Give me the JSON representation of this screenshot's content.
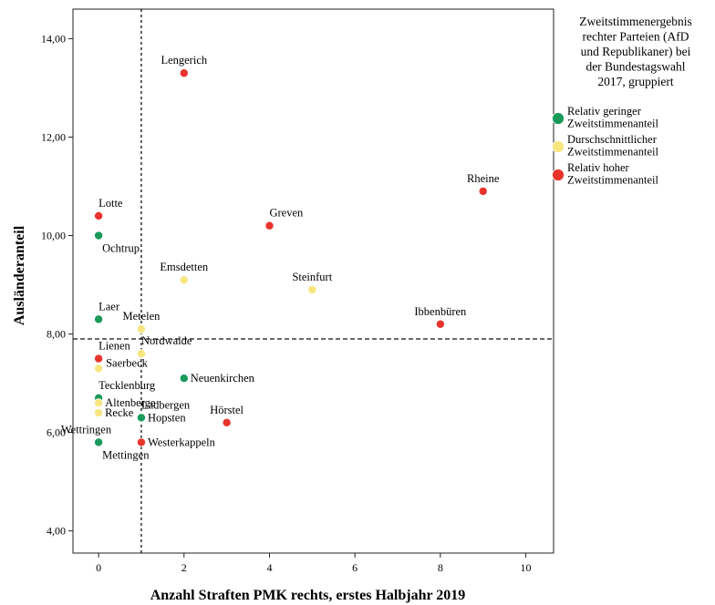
{
  "chart_data": {
    "type": "scatter",
    "xlabel": "Anzahl Straften PMK rechts, erstes Halbjahr 2019",
    "ylabel": "Ausländeranteil",
    "xlim": [
      -0.6,
      10.65
    ],
    "ylim": [
      3.55,
      14.6
    ],
    "xticks": [
      0,
      2,
      4,
      6,
      8,
      10
    ],
    "yticks": [
      4.0,
      6.0,
      8.0,
      10.0,
      12.0,
      14.0
    ],
    "xtick_labels": [
      "0",
      "2",
      "4",
      "6",
      "8",
      "10"
    ],
    "ytick_labels": [
      "4,00",
      "6,00",
      "8,00",
      "10,00",
      "12,00",
      "14,00"
    ],
    "reference_lines": {
      "vertical_x": 1.0,
      "horizontal_y": 7.9
    },
    "grid": false,
    "legend": {
      "placement": "right",
      "title": "Zweitstimmenergebnis rechter Parteien (AfD und Republikaner) bei der Bundestagswahl 2017, gruppiert",
      "title_lines": [
        "Zweitstimmenergebnis",
        "rechter Parteien (AfD",
        "und Republikaner) bei",
        "der Bundestagswahl",
        "2017, gruppiert"
      ],
      "entries": [
        {
          "key": "low",
          "label": "Relativ geringer Zweitstimmenanteil",
          "lines": [
            "Relativ geringer",
            "Zweitstimmenanteil"
          ]
        },
        {
          "key": "mid",
          "label": "Durschschnittlicher Zweitstimmenanteil",
          "lines": [
            "Durschschnittlicher",
            "Zweitstimmenanteil"
          ]
        },
        {
          "key": "high",
          "label": "Relativ hoher Zweitstimmenanteil",
          "lines": [
            "Relativ hoher",
            "Zweitstimmenanteil"
          ]
        }
      ]
    },
    "colors": {
      "low": "#1a9a5a",
      "mid": "#f7e680",
      "high": "#e8342c"
    },
    "points": [
      {
        "label": "Lengerich",
        "x": 2,
        "y": 13.3,
        "group": "high",
        "label_pos": "above"
      },
      {
        "label": "Rheine",
        "x": 9,
        "y": 10.9,
        "group": "high",
        "label_pos": "above"
      },
      {
        "label": "Lotte",
        "x": 0,
        "y": 10.4,
        "group": "high",
        "label_pos": "above-right"
      },
      {
        "label": "Greven",
        "x": 4,
        "y": 10.2,
        "group": "high",
        "label_pos": "above-right"
      },
      {
        "label": "Ochtrup",
        "x": 0,
        "y": 10.0,
        "group": "low",
        "label_pos": "below-right"
      },
      {
        "label": "Emsdetten",
        "x": 2,
        "y": 9.1,
        "group": "mid",
        "label_pos": "above"
      },
      {
        "label": "Steinfurt",
        "x": 5,
        "y": 8.9,
        "group": "mid",
        "label_pos": "above"
      },
      {
        "label": "Laer",
        "x": 0,
        "y": 8.3,
        "group": "low",
        "label_pos": "above-right"
      },
      {
        "label": "Ibbenbüren",
        "x": 8,
        "y": 8.2,
        "group": "high",
        "label_pos": "above"
      },
      {
        "label": "Metelen",
        "x": 1,
        "y": 8.1,
        "group": "mid",
        "label_pos": "above"
      },
      {
        "label": "Nordwalde",
        "x": 1,
        "y": 7.6,
        "group": "mid",
        "label_pos": "above-right"
      },
      {
        "label": "Lienen",
        "x": 0,
        "y": 7.5,
        "group": "high",
        "label_pos": "above-right"
      },
      {
        "label": "Saerbeck",
        "x": 0,
        "y": 7.3,
        "group": "mid",
        "label_pos": "right-up"
      },
      {
        "label": "Neuenkirchen",
        "x": 2,
        "y": 7.1,
        "group": "low",
        "label_pos": "right"
      },
      {
        "label": "Tecklenburg",
        "x": 0,
        "y": 6.7,
        "group": "low",
        "label_pos": "above-right"
      },
      {
        "label": "Altenberge",
        "x": 0,
        "y": 6.6,
        "group": "mid",
        "label_pos": "right"
      },
      {
        "label": "Ladbergen",
        "x": 1,
        "y": 6.3,
        "group": "low",
        "label_pos": "above-right"
      },
      {
        "label": "Recke",
        "x": 0,
        "y": 6.4,
        "group": "mid",
        "label_pos": "right"
      },
      {
        "label": "Hopsten",
        "x": 1,
        "y": 6.3,
        "group": "low",
        "label_pos": "right"
      },
      {
        "label": "Hörstel",
        "x": 3,
        "y": 6.2,
        "group": "high",
        "label_pos": "above"
      },
      {
        "label": "Wettringen",
        "x": 0,
        "y": 5.8,
        "group": "low",
        "label_pos": "above-left"
      },
      {
        "label": "Westerkappeln",
        "x": 1,
        "y": 5.8,
        "group": "high",
        "label_pos": "right"
      },
      {
        "label": "Mettingen",
        "x": 0,
        "y": 5.8,
        "group": "low",
        "label_pos": "below-right"
      }
    ]
  }
}
